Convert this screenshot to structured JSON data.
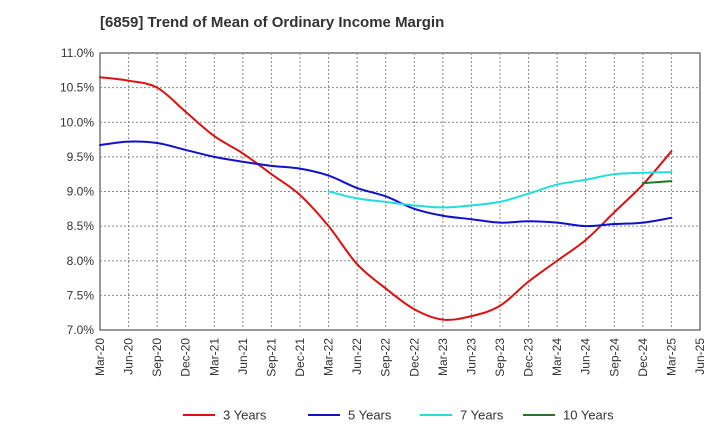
{
  "chart_data": {
    "type": "line",
    "title": "[6859]  Trend of Mean of Ordinary Income Margin",
    "xlabel": "",
    "ylabel": "",
    "ylim": [
      7.0,
      11.0
    ],
    "y_ticks": [
      "7.0%",
      "7.5%",
      "8.0%",
      "8.5%",
      "9.0%",
      "9.5%",
      "10.0%",
      "10.5%",
      "11.0%"
    ],
    "y_tick_values": [
      7.0,
      7.5,
      8.0,
      8.5,
      9.0,
      9.5,
      10.0,
      10.5,
      11.0
    ],
    "x_ticks": [
      "Mar-20",
      "Jun-20",
      "Sep-20",
      "Dec-20",
      "Mar-21",
      "Jun-21",
      "Sep-21",
      "Dec-21",
      "Mar-22",
      "Jun-22",
      "Sep-22",
      "Dec-22",
      "Mar-23",
      "Jun-23",
      "Sep-23",
      "Dec-23",
      "Mar-24",
      "Jun-24",
      "Sep-24",
      "Dec-24",
      "Mar-25",
      "Jun-25"
    ],
    "grid": true,
    "legend_position": "bottom",
    "series": [
      {
        "name": "3 Years",
        "color": "#dd1111",
        "start_index": 0,
        "values": [
          10.65,
          10.6,
          10.5,
          10.15,
          9.8,
          9.55,
          9.25,
          8.95,
          8.5,
          7.95,
          7.6,
          7.3,
          7.15,
          7.2,
          7.35,
          7.7,
          8.0,
          8.3,
          8.7,
          9.1,
          9.58
        ]
      },
      {
        "name": "5 Years",
        "color": "#1111cc",
        "start_index": 0,
        "values": [
          9.67,
          9.72,
          9.7,
          9.6,
          9.5,
          9.43,
          9.37,
          9.33,
          9.23,
          9.05,
          8.93,
          8.75,
          8.65,
          8.6,
          8.55,
          8.57,
          8.55,
          8.5,
          8.53,
          8.55,
          8.62
        ]
      },
      {
        "name": "7 Years",
        "color": "#22dddd",
        "start_index": 8,
        "values": [
          9.0,
          8.9,
          8.85,
          8.8,
          8.77,
          8.8,
          8.85,
          8.97,
          9.1,
          9.17,
          9.25,
          9.27,
          9.28
        ]
      },
      {
        "name": "10 Years",
        "color": "#227722",
        "start_index": 19,
        "values": [
          9.12,
          9.15
        ]
      }
    ]
  }
}
